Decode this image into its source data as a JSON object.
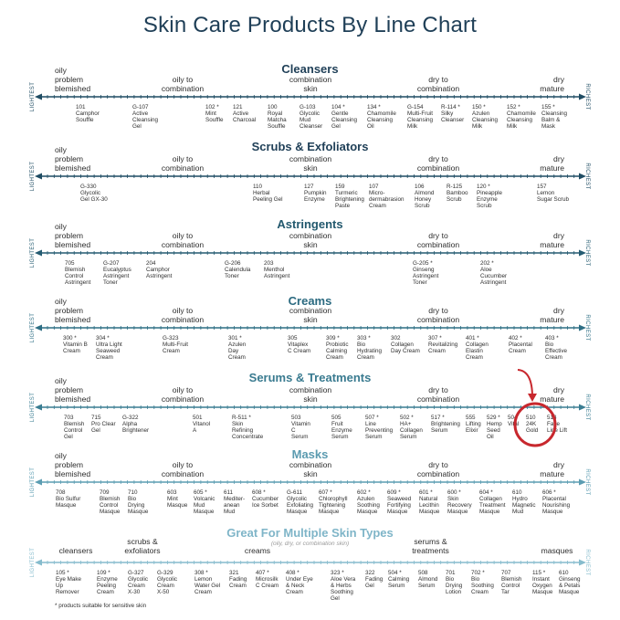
{
  "title": "Skin Care Products By Line Chart",
  "ends": {
    "left": "LIGHTEST",
    "right": "RICHEST"
  },
  "skin": {
    "oily": "oily\nproblem\nblemished",
    "oily_combo": "oily to\ncombination",
    "combo": "combination\nskin",
    "dry_combo": "dry to\ncombination",
    "dry": "dry\nmature"
  },
  "sections": [
    {
      "title": "Cleansers",
      "colors": {
        "title": "#1f3f57",
        "line": "#1f4c63"
      },
      "products": [
        "101\nCamphor\nSouffle",
        "G-107\nActive\nCleansing\nGel",
        "102 *\nMint\nSouffle",
        "121\nActive\nCharcoal",
        "100\nRoyal\nMatcha\nSouffle",
        "G-103\nGlycolic\nMud\nCleanser",
        "104 *\nGentle\nCleansing\nGel",
        "134 *\nChamomile\nCleansing\nOil",
        "G-154\nMulti-Fruit\nCleansing\nMilk",
        "R-114 *\nSilky\nCleanser",
        "150 *\nAzulen\nCleansing\nMilk",
        "152 *\nChamomile\nCleansing\nMilk",
        "155 *\nCleansing\nBalm &\nMask"
      ]
    },
    {
      "title": "Scrubs & Exfoliators",
      "colors": {
        "title": "#1f3f57",
        "line": "#1f4c63"
      },
      "products": [
        "G-330\nGlycolic\nGel GX-30",
        "110\nHerbal\nPeeling Gel",
        "127\nPumpkin\nEnzyme",
        "159\nTurmeric\nBrightening\nPaste",
        "107\nMicro-\ndermabrasion\nCream",
        "106\nAlmond\nHoney\nScrub",
        "R-125\nBamboo\nScrub",
        "120 *\nPineapple\nEnzyme\nScrub",
        "157\nLemon\nSugar Scrub"
      ]
    },
    {
      "title": "Astringents",
      "colors": {
        "title": "#23596e",
        "line": "#255c72"
      },
      "products": [
        "705\nBlemish\nControl\nAstringent",
        "G-207\nEucalyptus\nAstringent\nToner",
        "204\nCamphor\nAstringent",
        "G-206\nCalendula\nToner",
        "203\nMenthol\nAstringent",
        "G-205 *\nGinseng\nAstringent\nToner",
        "202 *\nAloe\nCucumber\nAstringent"
      ]
    },
    {
      "title": "Creams",
      "colors": {
        "title": "#2b6a80",
        "line": "#2d6e84"
      },
      "products": [
        "300 *\nVitamin B\nCream",
        "304 *\nUltra Light\nSeaweed\nCream",
        "G-323\nMulti-Fruit\nCream",
        "301 *\nAzulen\nDay\nCream",
        "305\nVitaplex\nC Cream",
        "309 *\nProbiotic\nCalming\nCream",
        "303 *\nBio\nHydrating\nCream",
        "302\nCollagen\nDay Cream",
        "307 *\nRevitalizing\nCream",
        "401 *\nCollagen\nElastin\nCream",
        "402 *\nPlacental\nCream",
        "403 *\nBio\nEffective\nCream"
      ]
    },
    {
      "title": "Serums & Treatments",
      "colors": {
        "title": "#3a7b90",
        "line": "#3a7d92",
        "highlight": "#c8282e"
      },
      "products": [
        "703\nBlemish\nControl\nGel",
        "715\nPro Clear\nGel",
        "G-322\nAlpha\nBrightener",
        "501\nVitanol\nA",
        "R-511 *\nSkin\nRefining\nConcentrate",
        "503\nVitamin\nC\nSerum",
        "505\nFruit\nEnzyme\nSerum",
        "507 *\nLine\nPreventing\nSerum",
        "502 *\nHA+\nCollagen\nSerum",
        "517 *\nBrightening\nSerum",
        "555\nLifting\nElixir",
        "529 *\nHemp\nSeed\nOil",
        "504\nVital",
        "510\n24K\nGold",
        "513\nFace\nLine Lift"
      ]
    },
    {
      "title": "Masks",
      "colors": {
        "title": "#5b9bb0",
        "line": "#5c9db2"
      },
      "products": [
        "708\nBio Sulfur\nMasque",
        "709\nBlemish\nControl\nMasque",
        "710\nBio\nDrying\nMasque",
        "603\nMint\nMasque",
        "605 *\nVolcanic\nMud\nMasque",
        "611\nMediter-\nanean\nMud",
        "608 *\nCucumber\nIce Sorbet",
        "G-611\nGlycolic\nExfoliating\nMasque",
        "607 *\nChlorophyll\nTightening\nMasque",
        "602 *\nAzulen\nSoothing\nMasque",
        "609 *\nSeaweed\nFortifying\nMasque",
        "601 *\nNatural\nLecithin\nMasque",
        "600 *\nSkin\nRecovery\nMasque",
        "604 *\nCollagen\nTreatment\nMasque",
        "610\nHydro\nMagnetic\nMud",
        "606 *\nPlacental\nNourishing\nMasque"
      ]
    },
    {
      "title": "Great For Multiple Skin Types",
      "subtitle": "(oily, dry, or combination skin)",
      "colors": {
        "title": "#7fb5c8",
        "line": "#86bccd"
      },
      "categories": [
        "cleansers",
        "scrubs &\nexfoliators",
        "creams",
        "serums &\ntreatments",
        "masques"
      ],
      "products": [
        "105 *\nEye Make\nUp\nRemover",
        "109 *\nEnzyme\nPeeling\nCream",
        "G-327\nGlycolic\nCream\nX-30",
        "G-329\nGlycolic\nCream\nX-50",
        "308 *\nLemon\nWater Gel\nCream",
        "321\nFading\nCream",
        "407 *\nMicrosilk\nC Cream",
        "408 *\nUnder Eye\n& Neck\nCream",
        "323 *\nAloe Vera\n& Herbs\nSoothing\nGel",
        "322\nFading\nGel",
        "504 *\nCalming\nSerum",
        "508\nAlmond\nSerum",
        "701\nBio\nDrying\nLotion",
        "702 *\nBio\nSoothing\nCream",
        "707\nBlemish\nControl\nTar",
        "115 *\nInstant\nOxygen\nMasque",
        "610\nGinseng\n& Petals\nMasque"
      ]
    }
  ],
  "footnote": "* products suitable for sensitive skin"
}
